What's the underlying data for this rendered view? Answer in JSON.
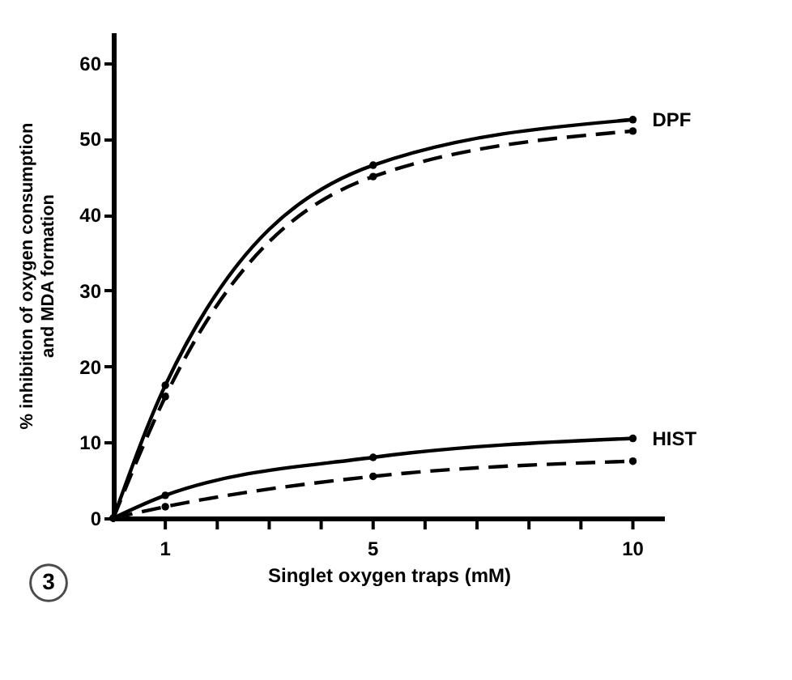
{
  "chart_data": {
    "type": "line",
    "xlabel": "Singlet oxygen traps (mM)",
    "ylabel": "% inhibition of oxygen consumption\nand  MDA formation",
    "xlim": [
      0,
      10.6
    ],
    "ylim": [
      0,
      64
    ],
    "xticks": [
      {
        "value": 1,
        "label": "1"
      },
      {
        "value": 2,
        "label": null
      },
      {
        "value": 3,
        "label": null
      },
      {
        "value": 4,
        "label": null
      },
      5,
      {
        "value": 6,
        "label": null
      },
      {
        "value": 7,
        "label": null
      },
      {
        "value": 8,
        "label": null
      },
      {
        "value": 9,
        "label": null
      },
      10
    ],
    "yticks": [
      0,
      10,
      20,
      30,
      40,
      50,
      60
    ],
    "grid": false,
    "marker": "circle",
    "series": [
      {
        "color": "#000000",
        "line_style": "solid",
        "x": [
          0,
          1,
          5,
          10
        ],
        "values": [
          0,
          17.5,
          46.5,
          52.5
        ]
      },
      {
        "color": "#000000",
        "line_style": "dashed",
        "x": [
          0,
          1,
          5,
          10
        ],
        "values": [
          0,
          16,
          45,
          51
        ]
      },
      {
        "color": "#000000",
        "line_style": "solid",
        "x": [
          0,
          1,
          5,
          10
        ],
        "values": [
          0,
          3,
          8,
          10.5
        ]
      },
      {
        "color": "#000000",
        "line_style": "dashed",
        "x": [
          0,
          1,
          5,
          10
        ],
        "values": [
          0,
          1.5,
          5.5,
          7.5
        ]
      }
    ],
    "annotations": [
      {
        "text": "DPF",
        "x": 10,
        "y": 52.5
      },
      {
        "text": "HIST",
        "x": 10,
        "y": 10.5
      },
      "3"
    ]
  }
}
